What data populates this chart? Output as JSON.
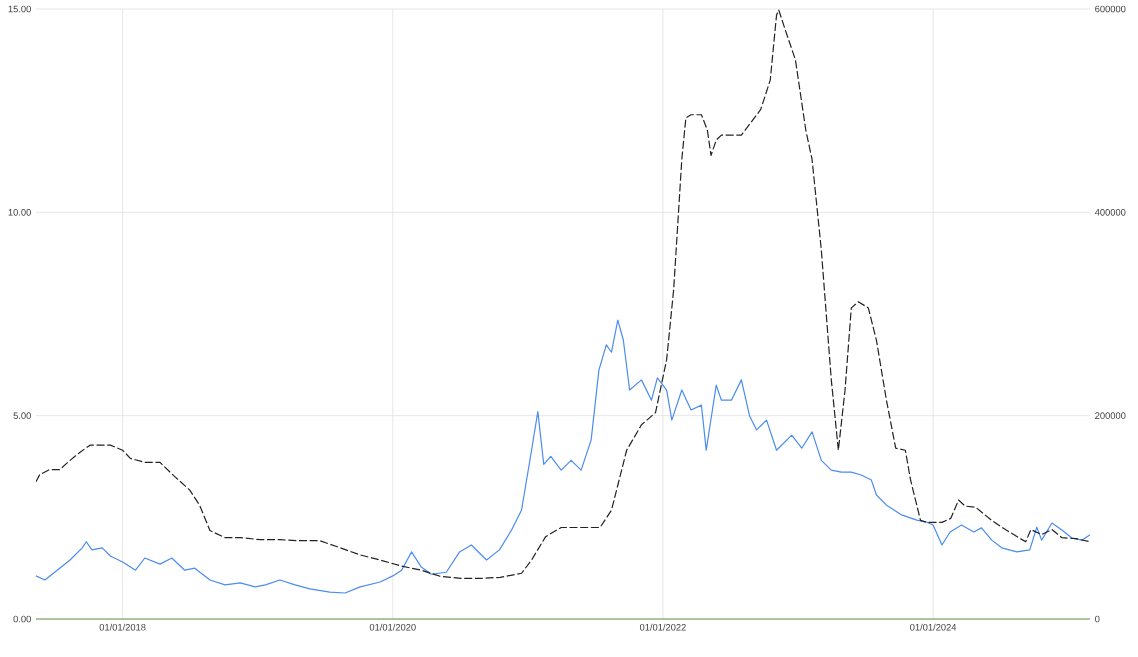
{
  "chart_data": {
    "type": "line",
    "xlim": [
      "2017-05-12",
      "2025-03-01"
    ],
    "xticks": [
      {
        "value": "2018-01-01",
        "label": "01/01/2018"
      },
      {
        "value": "2020-01-01",
        "label": "01/01/2020"
      },
      {
        "value": "2022-01-01",
        "label": "01/01/2022"
      },
      {
        "value": "2024-01-01",
        "label": "01/01/2024"
      }
    ],
    "ylim": [
      0,
      15
    ],
    "yticks": [
      {
        "value": 0,
        "label": "0.00"
      },
      {
        "value": 5,
        "label": "5.00"
      },
      {
        "value": 10,
        "label": "10.00"
      },
      {
        "value": 15,
        "label": "15.00"
      }
    ],
    "y2lim": [
      0,
      600000
    ],
    "y2ticks": [
      0,
      200000,
      400000,
      600000
    ],
    "grid": true,
    "series": [
      {
        "color": "#4a8cf0",
        "line_style": "solid",
        "x": [
          "2017-05-12",
          "2017-06-05",
          "2017-07-15",
          "2017-08-12",
          "2017-09-14",
          "2017-09-25",
          "2017-10-10",
          "2017-11-07",
          "2017-11-29",
          "2018-01-01",
          "2018-02-05",
          "2018-03-02",
          "2018-04-12",
          "2018-05-14",
          "2018-06-18",
          "2018-07-15",
          "2018-08-25",
          "2018-10-05",
          "2018-11-15",
          "2018-12-25",
          "2019-01-22",
          "2019-03-02",
          "2019-04-12",
          "2019-05-22",
          "2019-07-15",
          "2019-08-25",
          "2019-10-05",
          "2019-11-28",
          "2020-01-01",
          "2020-01-25",
          "2020-02-21",
          "2020-03-18",
          "2020-04-15",
          "2020-05-25",
          "2020-06-30",
          "2020-08-01",
          "2020-09-11",
          "2020-10-16",
          "2020-11-18",
          "2020-12-15",
          "2021-01-11",
          "2021-01-28",
          "2021-02-13",
          "2021-03-04",
          "2021-04-01",
          "2021-04-28",
          "2021-05-25",
          "2021-06-21",
          "2021-07-12",
          "2021-08-01",
          "2021-08-15",
          "2021-09-01",
          "2021-09-16",
          "2021-10-03",
          "2021-11-04",
          "2021-12-01",
          "2021-12-17",
          "2022-01-11",
          "2022-01-25",
          "2022-02-21",
          "2022-03-18",
          "2022-04-15",
          "2022-04-28",
          "2022-05-25",
          "2022-06-08",
          "2022-07-05",
          "2022-08-01",
          "2022-08-23",
          "2022-09-11",
          "2022-10-08",
          "2022-11-04",
          "2022-12-15",
          "2023-01-11",
          "2023-02-08",
          "2023-03-05",
          "2023-04-01",
          "2023-04-28",
          "2023-05-25",
          "2023-06-21",
          "2023-07-18",
          "2023-08-01",
          "2023-08-28",
          "2023-10-08",
          "2023-11-18",
          "2023-12-15",
          "2024-01-01",
          "2024-01-25",
          "2024-02-16",
          "2024-03-18",
          "2024-04-20",
          "2024-05-11",
          "2024-06-08",
          "2024-07-05",
          "2024-08-15",
          "2024-09-19",
          "2024-10-08",
          "2024-10-21",
          "2024-11-18",
          "2024-12-15",
          "2025-01-11",
          "2025-02-08",
          "2025-03-01"
        ],
        "values": [
          1.06,
          0.96,
          1.25,
          1.45,
          1.75,
          1.9,
          1.7,
          1.75,
          1.55,
          1.4,
          1.2,
          1.5,
          1.35,
          1.5,
          1.2,
          1.25,
          0.96,
          0.84,
          0.89,
          0.79,
          0.84,
          0.96,
          0.84,
          0.74,
          0.66,
          0.64,
          0.79,
          0.91,
          1.06,
          1.2,
          1.65,
          1.28,
          1.1,
          1.15,
          1.65,
          1.82,
          1.45,
          1.7,
          2.19,
          2.68,
          4.15,
          5.1,
          3.8,
          4.0,
          3.66,
          3.9,
          3.66,
          4.4,
          6.12,
          6.74,
          6.56,
          7.35,
          6.86,
          5.63,
          5.88,
          5.38,
          5.93,
          5.63,
          4.89,
          5.63,
          5.14,
          5.26,
          4.15,
          5.75,
          5.38,
          5.38,
          5.88,
          5.0,
          4.65,
          4.89,
          4.15,
          4.52,
          4.2,
          4.6,
          3.9,
          3.66,
          3.61,
          3.61,
          3.54,
          3.42,
          3.05,
          2.8,
          2.56,
          2.43,
          2.38,
          2.31,
          1.82,
          2.14,
          2.31,
          2.14,
          2.24,
          1.94,
          1.75,
          1.65,
          1.7,
          2.26,
          1.94,
          2.36,
          2.19,
          1.99,
          1.94,
          2.07
        ]
      },
      {
        "color": "#222222",
        "axis": "y2",
        "line_style": "dashed",
        "x": [
          "2017-05-12",
          "2017-05-22",
          "2017-06-18",
          "2017-07-15",
          "2017-08-12",
          "2017-09-08",
          "2017-10-05",
          "2017-11-01",
          "2017-11-29",
          "2018-01-01",
          "2018-01-22",
          "2018-03-02",
          "2018-04-12",
          "2018-05-22",
          "2018-07-01",
          "2018-07-28",
          "2018-08-25",
          "2018-10-05",
          "2018-11-15",
          "2019-01-08",
          "2019-03-02",
          "2019-04-25",
          "2019-06-18",
          "2019-08-12",
          "2019-10-05",
          "2019-11-28",
          "2020-01-25",
          "2020-03-18",
          "2020-05-08",
          "2020-07-04",
          "2020-08-28",
          "2020-10-18",
          "2020-12-15",
          "2021-01-11",
          "2021-02-18",
          "2021-04-01",
          "2021-05-25",
          "2021-07-15",
          "2021-08-15",
          "2021-09-25",
          "2021-11-04",
          "2021-12-12",
          "2022-01-11",
          "2022-01-30",
          "2022-02-21",
          "2022-03-04",
          "2022-03-18",
          "2022-04-15",
          "2022-05-01",
          "2022-05-11",
          "2022-05-25",
          "2022-06-08",
          "2022-08-01",
          "2022-09-22",
          "2022-10-18",
          "2022-11-04",
          "2022-11-10",
          "2022-11-28",
          "2022-12-25",
          "2023-01-22",
          "2023-02-08",
          "2023-03-05",
          "2023-04-01",
          "2023-04-20",
          "2023-05-08",
          "2023-05-25",
          "2023-06-13",
          "2023-07-10",
          "2023-08-01",
          "2023-08-28",
          "2023-09-22",
          "2023-10-18",
          "2023-11-01",
          "2023-11-28",
          "2023-12-15",
          "2024-01-25",
          "2024-02-18",
          "2024-03-10",
          "2024-03-28",
          "2024-04-25",
          "2024-06-08",
          "2024-07-15",
          "2024-08-20",
          "2024-09-08",
          "2024-09-22",
          "2024-10-21",
          "2024-11-18",
          "2024-12-15",
          "2025-01-22",
          "2025-03-01"
        ],
        "values": [
          135000,
          142000,
          147000,
          147000,
          156000,
          164000,
          171000,
          171000,
          171000,
          166000,
          158000,
          154000,
          154000,
          140000,
          127000,
          112000,
          87000,
          80000,
          80000,
          78000,
          78000,
          77000,
          77000,
          70000,
          63000,
          58000,
          52000,
          48000,
          42000,
          40000,
          40000,
          41000,
          45000,
          58000,
          81000,
          90000,
          90000,
          90000,
          107000,
          166000,
          191000,
          203000,
          255000,
          324000,
          452000,
          493000,
          496000,
          496000,
          481000,
          456000,
          471000,
          476000,
          476000,
          501000,
          530000,
          594000,
          599000,
          579000,
          550000,
          481000,
          452000,
          363000,
          235000,
          166000,
          225000,
          306000,
          312000,
          306000,
          274000,
          215000,
          168000,
          166000,
          137000,
          97000,
          95000,
          95000,
          99000,
          117000,
          111000,
          110000,
          97000,
          88000,
          80000,
          76000,
          88000,
          83000,
          88000,
          80000,
          79000,
          76000
        ]
      }
    ]
  }
}
